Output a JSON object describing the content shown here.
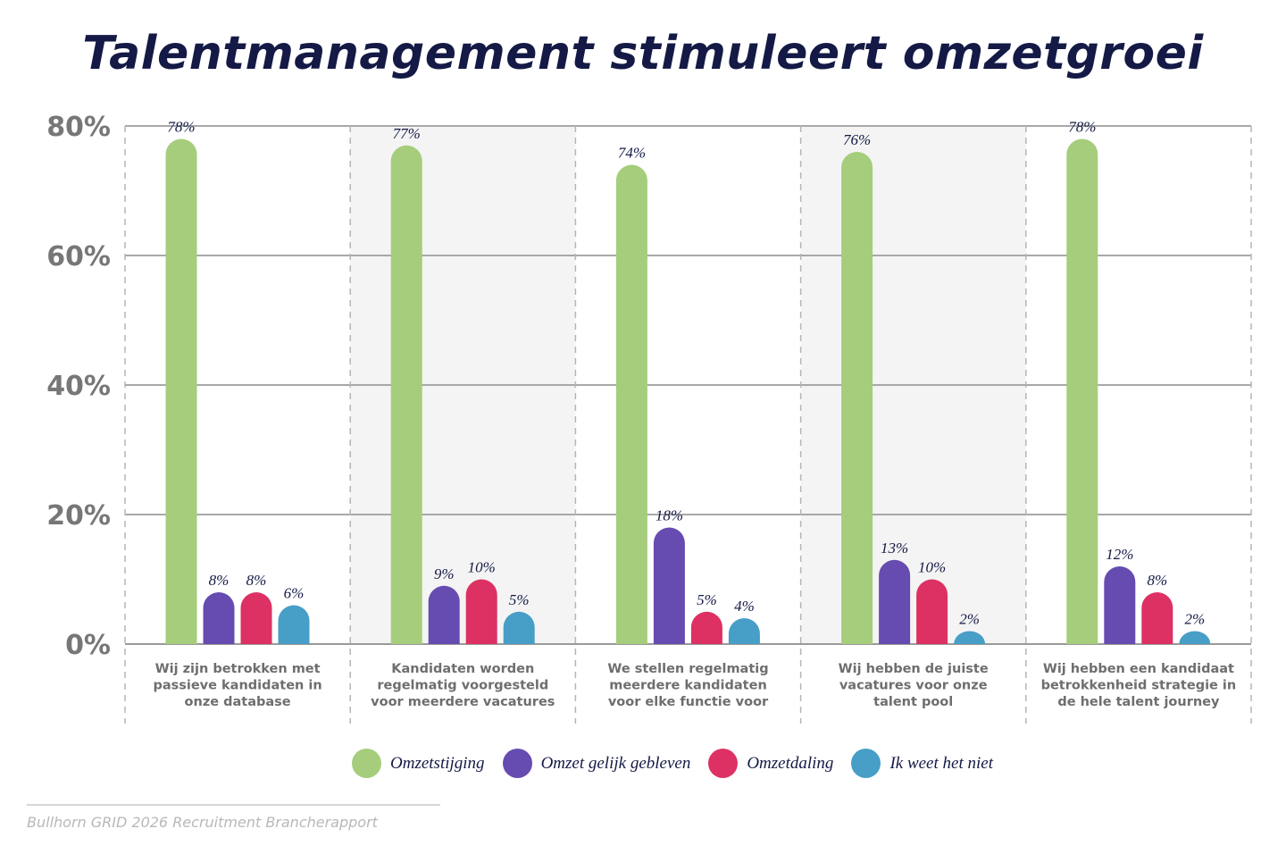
{
  "chart_data": {
    "type": "bar",
    "title": "Talentmanagement stimuleert omzetgroei",
    "categories": [
      "Wij zijn betrokken met passieve kandidaten in onze database",
      "Kandidaten worden regelmatig voorgesteld voor meerdere vacatures",
      "We stellen regelmatig meerdere kandidaten voor elke functie voor",
      "Wij hebben de juiste vacatures voor onze talent pool",
      "Wij hebben een kandidaat betrokkenheid strategie in de hele talent journey"
    ],
    "category_lines": [
      [
        "Wij zijn betrokken met",
        "passieve kandidaten in",
        "onze database"
      ],
      [
        "Kandidaten worden",
        "regelmatig voorgesteld",
        "voor meerdere vacatures"
      ],
      [
        "We stellen regelmatig",
        "meerdere kandidaten",
        "voor elke functie voor"
      ],
      [
        "Wij hebben de juiste",
        "vacatures voor onze",
        "talent pool"
      ],
      [
        "Wij hebben een kandidaat",
        "betrokkenheid strategie in",
        "de hele talent journey"
      ]
    ],
    "series": [
      {
        "name": "Omzetstijging",
        "color": "#a5cd7b",
        "values": [
          78,
          77,
          74,
          76,
          78
        ]
      },
      {
        "name": "Omzet gelijk gebleven",
        "color": "#664bb0",
        "values": [
          8,
          9,
          18,
          13,
          12
        ]
      },
      {
        "name": "Omzetdaling",
        "color": "#dd3163",
        "values": [
          8,
          10,
          5,
          10,
          8
        ]
      },
      {
        "name": "Ik weet het niet",
        "color": "#479ec6",
        "values": [
          6,
          5,
          4,
          2,
          2
        ]
      }
    ],
    "ylim": [
      0,
      80
    ],
    "yticks": [
      "0%",
      "20%",
      "40%",
      "60%",
      "80%"
    ],
    "ytick_values": [
      0,
      20,
      40,
      60,
      80
    ],
    "grid": true,
    "legend": "bottom",
    "xlabel": "",
    "ylabel": ""
  },
  "source": "Bullhorn GRID 2026 Recruitment Brancherapport"
}
